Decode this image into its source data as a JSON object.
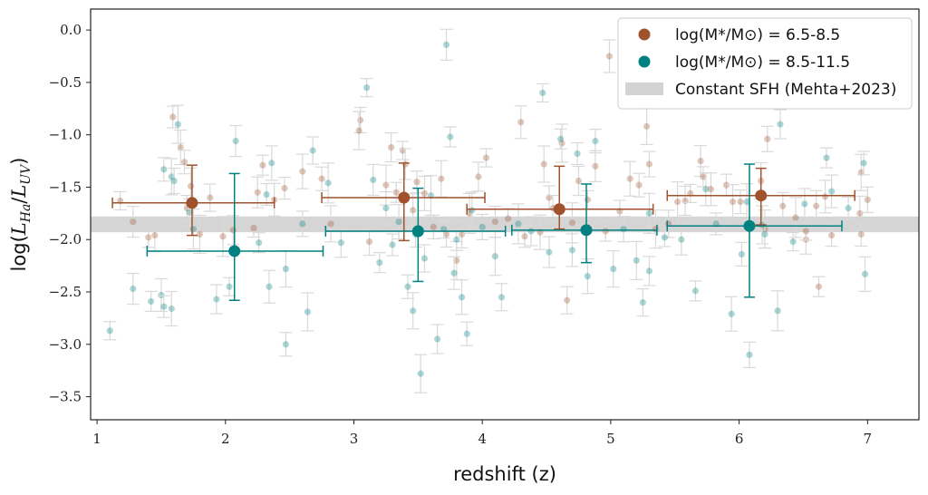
{
  "chart_data": {
    "type": "scatter",
    "title": "",
    "xlabel": "redshift (z)",
    "ylabel": "log(L_Ha/L_UV)",
    "xlim": [
      0.95,
      7.4
    ],
    "ylim": [
      -3.72,
      0.2
    ],
    "x_ticks": [
      1,
      2,
      3,
      4,
      5,
      6,
      7
    ],
    "x_tick_labels": [
      "1",
      "2",
      "3",
      "4",
      "5",
      "6",
      "7"
    ],
    "y_ticks": [
      0.0,
      -0.5,
      -1.0,
      -1.5,
      -2.0,
      -2.5,
      -3.0,
      -3.5
    ],
    "y_tick_labels": [
      "0.0",
      "−0.5",
      "−1.0",
      "−1.5",
      "−2.0",
      "−2.5",
      "−3.0",
      "−3.5"
    ],
    "grid": false,
    "legend_position": "top-right",
    "colors": {
      "low_mass": "#a0522d",
      "high_mass": "#008080",
      "band": "#d3d3d3",
      "errorbar_faint": "#d9d9d9"
    },
    "legend": [
      {
        "label": "log(M*/M⊙) = 6.5-8.5",
        "kind": "marker",
        "series": "low_mass"
      },
      {
        "label": "log(M*/M⊙) = 8.5-11.5",
        "kind": "marker",
        "series": "high_mass"
      },
      {
        "label": "Constant SFH (Mehta+2023)",
        "kind": "band"
      }
    ],
    "band": {
      "label": "Constant SFH (Mehta+2023)",
      "y_low": -1.93,
      "y_high": -1.78
    },
    "binned_series": [
      {
        "name": "log(M*/M⊙) = 6.5-8.5",
        "key": "low_mass",
        "points": [
          {
            "x": 1.74,
            "y": -1.65,
            "xerr_low": 1.12,
            "xerr_high": 2.38,
            "yerr_low": -1.96,
            "yerr_high": -1.29
          },
          {
            "x": 3.39,
            "y": -1.6,
            "xerr_low": 2.75,
            "xerr_high": 4.02,
            "yerr_low": -2.01,
            "yerr_high": -1.27
          },
          {
            "x": 4.6,
            "y": -1.71,
            "xerr_low": 3.88,
            "xerr_high": 5.33,
            "yerr_low": -1.9,
            "yerr_high": -1.3
          },
          {
            "x": 6.17,
            "y": -1.58,
            "xerr_low": 5.44,
            "xerr_high": 6.9,
            "yerr_low": -1.86,
            "yerr_high": -1.32
          }
        ]
      },
      {
        "name": "log(M*/M⊙) = 8.5-11.5",
        "key": "high_mass",
        "points": [
          {
            "x": 2.07,
            "y": -2.11,
            "xerr_low": 1.39,
            "xerr_high": 2.76,
            "yerr_low": -2.58,
            "yerr_high": -1.37
          },
          {
            "x": 3.5,
            "y": -1.92,
            "xerr_low": 2.78,
            "xerr_high": 4.18,
            "yerr_low": -2.4,
            "yerr_high": -1.51
          },
          {
            "x": 4.81,
            "y": -1.91,
            "xerr_low": 4.23,
            "xerr_high": 5.36,
            "yerr_low": -2.22,
            "yerr_high": -1.47
          },
          {
            "x": 6.08,
            "y": -1.87,
            "xerr_low": 5.44,
            "xerr_high": 6.8,
            "yerr_low": -2.55,
            "yerr_high": -1.28
          }
        ]
      }
    ],
    "individual_points": {
      "low_mass": [
        [
          1.18,
          -1.63
        ],
        [
          1.28,
          -1.83
        ],
        [
          1.4,
          -1.98
        ],
        [
          1.45,
          -1.96
        ],
        [
          1.59,
          -0.83
        ],
        [
          1.65,
          -1.12
        ],
        [
          1.68,
          -1.26
        ],
        [
          1.73,
          -1.49
        ],
        [
          1.7,
          -1.7
        ],
        [
          1.8,
          -1.95
        ],
        [
          1.88,
          -1.6
        ],
        [
          1.98,
          -1.97
        ],
        [
          2.06,
          -1.91
        ],
        [
          2.22,
          -1.89
        ],
        [
          2.25,
          -1.55
        ],
        [
          2.29,
          -1.29
        ],
        [
          2.38,
          -1.62
        ],
        [
          2.46,
          -1.51
        ],
        [
          2.6,
          -1.35
        ],
        [
          2.75,
          -1.42
        ],
        [
          2.82,
          -1.85
        ],
        [
          3.05,
          -0.86
        ],
        [
          3.04,
          -0.96
        ],
        [
          3.12,
          -2.02
        ],
        [
          3.25,
          -1.48
        ],
        [
          3.29,
          -1.12
        ],
        [
          3.38,
          -1.15
        ],
        [
          3.4,
          -1.28
        ],
        [
          3.33,
          -1.55
        ],
        [
          3.46,
          -1.72
        ],
        [
          3.49,
          -1.45
        ],
        [
          3.55,
          -1.56
        ],
        [
          3.62,
          -1.88
        ],
        [
          3.68,
          -1.42
        ],
        [
          3.72,
          -1.95
        ],
        [
          3.8,
          -2.2
        ],
        [
          3.84,
          -1.95
        ],
        [
          3.9,
          -1.75
        ],
        [
          3.97,
          -1.4
        ],
        [
          4.03,
          -1.22
        ],
        [
          4.1,
          -1.83
        ],
        [
          4.2,
          -1.8
        ],
        [
          4.3,
          -0.88
        ],
        [
          4.33,
          -1.97
        ],
        [
          4.45,
          -1.93
        ],
        [
          4.52,
          -1.6
        ],
        [
          4.48,
          -1.28
        ],
        [
          4.55,
          -1.7
        ],
        [
          4.62,
          -1.08
        ],
        [
          4.66,
          -2.58
        ],
        [
          4.7,
          -1.84
        ],
        [
          4.75,
          -1.44
        ],
        [
          4.82,
          -1.62
        ],
        [
          4.88,
          -1.3
        ],
        [
          4.96,
          -1.92
        ],
        [
          4.99,
          -0.25
        ],
        [
          5.07,
          -1.73
        ],
        [
          5.15,
          -1.42
        ],
        [
          5.22,
          -1.48
        ],
        [
          5.28,
          -0.92
        ],
        [
          5.3,
          -1.28
        ],
        [
          5.35,
          -1.9
        ],
        [
          5.45,
          -1.85
        ],
        [
          5.52,
          -1.64
        ],
        [
          5.58,
          -1.63
        ],
        [
          5.62,
          -1.56
        ],
        [
          5.7,
          -1.25
        ],
        [
          5.72,
          -1.4
        ],
        [
          5.78,
          -1.52
        ],
        [
          5.9,
          -1.48
        ],
        [
          5.95,
          -1.64
        ],
        [
          6.01,
          -1.64
        ],
        [
          6.17,
          -1.44
        ],
        [
          6.22,
          -1.04
        ],
        [
          6.2,
          -1.9
        ],
        [
          6.34,
          -1.68
        ],
        [
          6.44,
          -1.79
        ],
        [
          6.52,
          -2.0
        ],
        [
          6.52,
          -1.92
        ],
        [
          6.6,
          -1.68
        ],
        [
          6.62,
          -2.45
        ],
        [
          6.67,
          -1.59
        ],
        [
          6.72,
          -1.96
        ],
        [
          6.94,
          -1.75
        ],
        [
          6.95,
          -1.95
        ],
        [
          6.95,
          -1.36
        ],
        [
          7.0,
          -1.62
        ]
      ],
      "high_mass": [
        [
          1.1,
          -2.87
        ],
        [
          1.28,
          -2.47
        ],
        [
          1.42,
          -2.59
        ],
        [
          1.5,
          -2.53
        ],
        [
          1.52,
          -2.64
        ],
        [
          1.58,
          -2.66
        ],
        [
          1.52,
          -1.33
        ],
        [
          1.58,
          -1.4
        ],
        [
          1.6,
          -1.44
        ],
        [
          1.63,
          -0.9
        ],
        [
          1.72,
          -1.74
        ],
        [
          1.75,
          -1.9
        ],
        [
          1.93,
          -2.57
        ],
        [
          2.03,
          -2.45
        ],
        [
          2.08,
          -1.06
        ],
        [
          2.26,
          -2.03
        ],
        [
          2.34,
          -2.45
        ],
        [
          2.32,
          -1.57
        ],
        [
          2.36,
          -1.27
        ],
        [
          2.47,
          -3.0
        ],
        [
          2.47,
          -2.28
        ],
        [
          2.6,
          -1.85
        ],
        [
          2.64,
          -2.69
        ],
        [
          2.68,
          -1.15
        ],
        [
          2.8,
          -1.46
        ],
        [
          2.9,
          -2.03
        ],
        [
          3.1,
          -0.55
        ],
        [
          3.15,
          -1.43
        ],
        [
          3.2,
          -2.22
        ],
        [
          3.25,
          -1.7
        ],
        [
          3.3,
          -2.05
        ],
        [
          3.35,
          -1.83
        ],
        [
          3.42,
          -2.45
        ],
        [
          3.46,
          -2.68
        ],
        [
          3.48,
          -1.95
        ],
        [
          3.52,
          -3.28
        ],
        [
          3.55,
          -2.18
        ],
        [
          3.6,
          -1.58
        ],
        [
          3.65,
          -2.95
        ],
        [
          3.7,
          -1.9
        ],
        [
          3.72,
          -0.14
        ],
        [
          3.75,
          -1.02
        ],
        [
          3.78,
          -2.32
        ],
        [
          3.8,
          -2.0
        ],
        [
          3.84,
          -2.55
        ],
        [
          3.88,
          -2.9
        ],
        [
          3.92,
          -1.72
        ],
        [
          4.0,
          -1.88
        ],
        [
          4.1,
          -2.16
        ],
        [
          4.15,
          -2.55
        ],
        [
          4.28,
          -1.85
        ],
        [
          4.38,
          -1.92
        ],
        [
          4.47,
          -0.6
        ],
        [
          4.52,
          -2.12
        ],
        [
          4.61,
          -1.04
        ],
        [
          4.7,
          -2.1
        ],
        [
          4.74,
          -1.18
        ],
        [
          4.82,
          -2.35
        ],
        [
          4.88,
          -1.06
        ],
        [
          5.02,
          -2.28
        ],
        [
          5.1,
          -1.9
        ],
        [
          5.2,
          -2.2
        ],
        [
          5.25,
          -2.6
        ],
        [
          5.3,
          -1.75
        ],
        [
          5.3,
          -2.3
        ],
        [
          5.42,
          -1.98
        ],
        [
          5.55,
          -2.0
        ],
        [
          5.66,
          -2.49
        ],
        [
          5.74,
          -1.52
        ],
        [
          5.82,
          -1.85
        ],
        [
          5.94,
          -2.71
        ],
        [
          6.02,
          -2.14
        ],
        [
          6.06,
          -1.64
        ],
        [
          6.08,
          -3.1
        ],
        [
          6.18,
          -1.86
        ],
        [
          6.2,
          -1.95
        ],
        [
          6.3,
          -2.68
        ],
        [
          6.32,
          -0.9
        ],
        [
          6.42,
          -2.02
        ],
        [
          6.51,
          -1.66
        ],
        [
          6.68,
          -1.22
        ],
        [
          6.72,
          -1.54
        ],
        [
          6.85,
          -1.7
        ],
        [
          6.98,
          -2.33
        ],
        [
          6.97,
          -1.27
        ]
      ]
    }
  }
}
